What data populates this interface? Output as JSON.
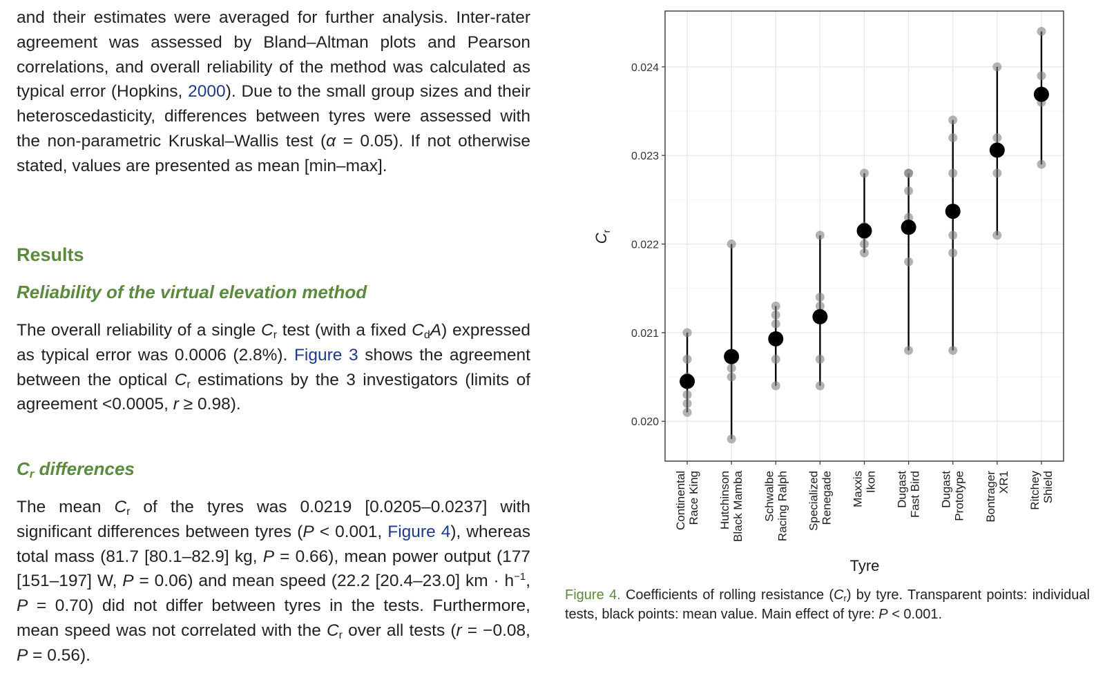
{
  "text": {
    "intro": "and their estimates were averaged for further analysis. Inter-rater agreement was assessed by Bland–Altman plots and Pearson correlations, and overall reliability of the method was calculated as typical error (Hopkins, 2000). Due to the small group sizes and their heteroscedasticity, differences between tyres were assessed with the non-parametric Kruskal–Wallis test (α = 0.05). If not otherwise stated, values are presented as mean [min–max].",
    "intro_parts": {
      "a": "and their estimates were averaged for further analysis. Inter-rater agreement was assessed by Bland–Altman plots and Pearson correlations, and overall reliability of the method was calculated as typical error (Hopkins, ",
      "link": "2000",
      "b": "). Due to the small group sizes and their heteroscedasticity, differences between tyres were assessed with the non-parametric Kruskal–Wallis test (",
      "alpha": "α",
      "c": " = 0.05). If not otherwise stated, values are presented as mean [min–max]."
    },
    "results_heading": "Results",
    "reliability_heading": "Reliability of the virtual elevation method",
    "reliability_parts": {
      "a": "The overall reliability of a single ",
      "cr_c": "C",
      "cr_r": "r",
      "b": " test (with a fixed ",
      "cda_c": "C",
      "cda_d": "d",
      "cda_a": "A",
      "c": ") expressed as typical error was 0.0006 (2.8%). ",
      "link": "Figure 3",
      "d": " shows the agreement between the optical ",
      "e": " estimations by the 3 investigators (limits of agreement <0.0005, ",
      "r": "r",
      "f": " ≥ 0.98)."
    },
    "cr_diff_heading_c": "C",
    "cr_diff_heading_r": "r",
    "cr_diff_heading_rest": " differences",
    "diff_parts": {
      "a": "The mean ",
      "b": " of the tyres was 0.0219 [0.0205–0.0237] with significant differences between tyres (",
      "P": "P",
      "c": " < 0.001, ",
      "link": "Figure 4",
      "d": "), whereas total mass (81.7 [80.1–82.9] kg, ",
      "e": " = 0.66), mean power output (177 [151–197] W, ",
      "f": " = 0.06) and mean speed (22.2 [20.4–23.0] km · h",
      "sup": "−1",
      "g": ", ",
      "h": " = 0.70) did not differ between tyres in the tests. Furthermore, mean speed was not correlated with the ",
      "i": " over all tests (",
      "r": "r",
      "j": " = −0.08, ",
      "k": " = 0.56)."
    }
  },
  "caption": {
    "label": "Figure 4.",
    "a": " Coefficients of rolling resistance (",
    "cr_c": "C",
    "cr_r": "r",
    "b": ") by tyre. Transparent points: individual tests, black points: mean value. Main effect of tyre: ",
    "P": "P",
    "c": " < 0.001."
  },
  "chart_data": {
    "type": "scatter",
    "xlabel": "Tyre",
    "ylabel_main": "C",
    "ylabel_sub": "r",
    "ylim": [
      0.01955,
      0.02463
    ],
    "y_ticks": [
      0.02,
      0.021,
      0.022,
      0.023,
      0.024
    ],
    "y_tick_labels": [
      "0.020",
      "0.021",
      "0.022",
      "0.023",
      "0.024"
    ],
    "grid": true,
    "categories": [
      {
        "line1": "Continental",
        "line2": "Race King"
      },
      {
        "line1": "Hutchinson",
        "line2": "Black Mamba"
      },
      {
        "line1": "Schwalbe",
        "line2": "Racing Ralph"
      },
      {
        "line1": "Specialized",
        "line2": "Renegade"
      },
      {
        "line1": "Maxxis",
        "line2": "Ikon"
      },
      {
        "line1": "Dugast",
        "line2": "Fast Bird"
      },
      {
        "line1": "Dugast",
        "line2": "Prototype"
      },
      {
        "line1": "Bontrager",
        "line2": "XR1"
      },
      {
        "line1": "Ritchey",
        "line2": "Shield"
      }
    ],
    "individual_tests": [
      [
        0.021,
        0.0207,
        0.0203,
        0.0202,
        0.0201,
        0.0205
      ],
      [
        0.022,
        0.0207,
        0.0206,
        0.0205,
        0.0198
      ],
      [
        0.0213,
        0.0212,
        0.0211,
        0.0209,
        0.0207,
        0.0204
      ],
      [
        0.0221,
        0.0214,
        0.0213,
        0.0207,
        0.0204
      ],
      [
        0.0228,
        0.0222,
        0.0221,
        0.022,
        0.0219
      ],
      [
        0.0228,
        0.0228,
        0.0226,
        0.0223,
        0.0218,
        0.0208
      ],
      [
        0.0234,
        0.0232,
        0.0228,
        0.0221,
        0.0219,
        0.0208
      ],
      [
        0.024,
        0.0232,
        0.0231,
        0.0228,
        0.0221
      ],
      [
        0.0244,
        0.0239,
        0.0237,
        0.0236,
        0.0229
      ]
    ],
    "means": [
      0.02045,
      0.02073,
      0.02093,
      0.02118,
      0.02215,
      0.02219,
      0.02237,
      0.02306,
      0.02369
    ],
    "colors": {
      "individual": "#808080",
      "mean": "#000000",
      "grid": "#e6e6e6",
      "panel_border": "#333333"
    }
  }
}
